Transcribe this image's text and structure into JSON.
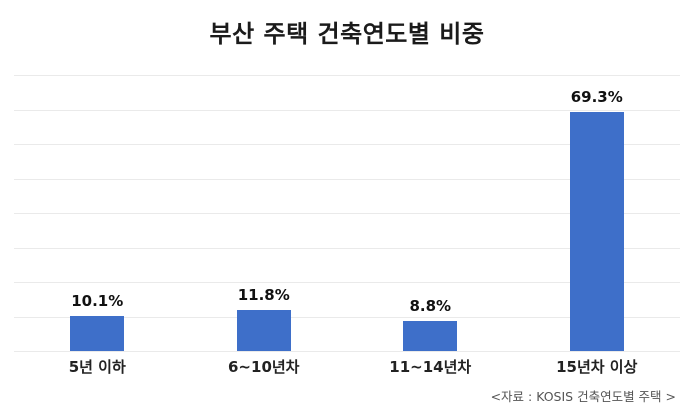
{
  "title": "부산 주택 건축연도별 비중",
  "source_note": "<자료 : KOSIS 건축연도별 주택 >",
  "colors": {
    "bar": "#3e6fc9",
    "gridline": "#eaeaea",
    "title_text": "#1b1b1b",
    "label_text": "#222222",
    "source_text": "#555555",
    "background": "#ffffff"
  },
  "chart_data": {
    "type": "bar",
    "title": "부산 주택 건축연도별 비중",
    "categories": [
      "5년 이하",
      "6~10년차",
      "11~14년차",
      "15년차 이상"
    ],
    "values": [
      10.1,
      11.8,
      8.8,
      69.3
    ],
    "value_labels": [
      "10.1%",
      "11.8%",
      "8.8%",
      "69.3%"
    ],
    "xlabel": "",
    "ylabel": "",
    "ylim": [
      0,
      80
    ],
    "grid": true,
    "gridline_count": 9,
    "legend": "none",
    "bar_color": "#3e6fc9",
    "source_note": "<자료 : KOSIS 건축연도별 주택 >"
  }
}
